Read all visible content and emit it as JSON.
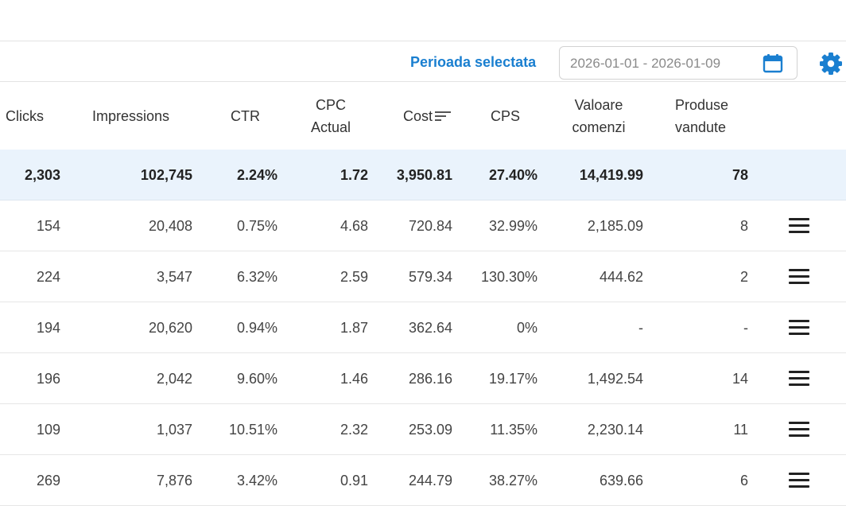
{
  "period": {
    "label": "Perioada selectata",
    "date_range": "2026-01-01 - 2026-01-09"
  },
  "accent_color": "#1a7fd0",
  "icons": {
    "calendar": "calendar-icon",
    "settings": "gear-icon",
    "sort": "sort-icon",
    "row_menu": "menu-icon"
  },
  "columns": {
    "clicks": "Clicks",
    "impressions": "Impressions",
    "ctr": "CTR",
    "cpc_1": "CPC",
    "cpc_2": "Actual",
    "cost": "Cost",
    "cps": "CPS",
    "valoare_1": "Valoare",
    "valoare_2": "comenzi",
    "produse_1": "Produse",
    "produse_2": "vandute"
  },
  "total": {
    "clicks": "2,303",
    "impressions": "102,745",
    "ctr": "2.24%",
    "cpc": "1.72",
    "cost": "3,950.81",
    "cps": "27.40%",
    "valoare": "14,419.99",
    "produse": "78"
  },
  "rows": [
    {
      "clicks": "154",
      "impressions": "20,408",
      "ctr": "0.75%",
      "cpc": "4.68",
      "cost": "720.84",
      "cps": "32.99%",
      "valoare": "2,185.09",
      "produse": "8"
    },
    {
      "clicks": "224",
      "impressions": "3,547",
      "ctr": "6.32%",
      "cpc": "2.59",
      "cost": "579.34",
      "cps": "130.30%",
      "valoare": "444.62",
      "produse": "2"
    },
    {
      "clicks": "194",
      "impressions": "20,620",
      "ctr": "0.94%",
      "cpc": "1.87",
      "cost": "362.64",
      "cps": "0%",
      "valoare": "-",
      "produse": "-"
    },
    {
      "clicks": "196",
      "impressions": "2,042",
      "ctr": "9.60%",
      "cpc": "1.46",
      "cost": "286.16",
      "cps": "19.17%",
      "valoare": "1,492.54",
      "produse": "14"
    },
    {
      "clicks": "109",
      "impressions": "1,037",
      "ctr": "10.51%",
      "cpc": "2.32",
      "cost": "253.09",
      "cps": "11.35%",
      "valoare": "2,230.14",
      "produse": "11"
    },
    {
      "clicks": "269",
      "impressions": "7,876",
      "ctr": "3.42%",
      "cpc": "0.91",
      "cost": "244.79",
      "cps": "38.27%",
      "valoare": "639.66",
      "produse": "6"
    }
  ]
}
